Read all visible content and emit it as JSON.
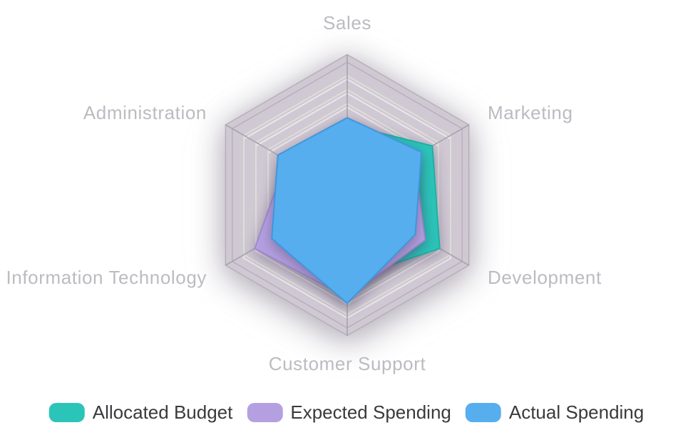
{
  "chart_data": {
    "type": "radar",
    "title": "",
    "grid": "hexagonal rings, no tick labels",
    "legend_position": "bottom",
    "indicators": [
      {
        "name": "Sales",
        "max": 100
      },
      {
        "name": "Marketing",
        "max": 100
      },
      {
        "name": "Development",
        "max": 100
      },
      {
        "name": "Customer Support",
        "max": 100
      },
      {
        "name": "Information Technology",
        "max": 100
      },
      {
        "name": "Administration",
        "max": 100
      }
    ],
    "series": [
      {
        "name": "Allocated Budget",
        "color": "#2bc4b9",
        "border": "#1fb0a6",
        "values": [
          50,
          70,
          76,
          60,
          50,
          35
        ]
      },
      {
        "name": "Expected Spending",
        "color": "#b4a0e0",
        "border": "#a188d2",
        "values": [
          50,
          55,
          64,
          73,
          76,
          50
        ]
      },
      {
        "name": "Actual Spending",
        "color": "#56aeee",
        "border": "#3f97dd",
        "values": [
          55,
          61,
          56,
          77,
          62,
          57
        ]
      }
    ]
  },
  "style": {
    "background": "#ffffff",
    "band_fill": "#d0c8d3",
    "band_edge": "#b5b0ba",
    "ring_line": "#dcdfd7",
    "ring_shadow": "rgba(255,255,255,0.55)",
    "bevel_line": "#b3aeb8",
    "axis_line": "#a8a4ac",
    "axis_label_color": "#bdbac1",
    "legend_text_color": "#3a3a3e"
  }
}
